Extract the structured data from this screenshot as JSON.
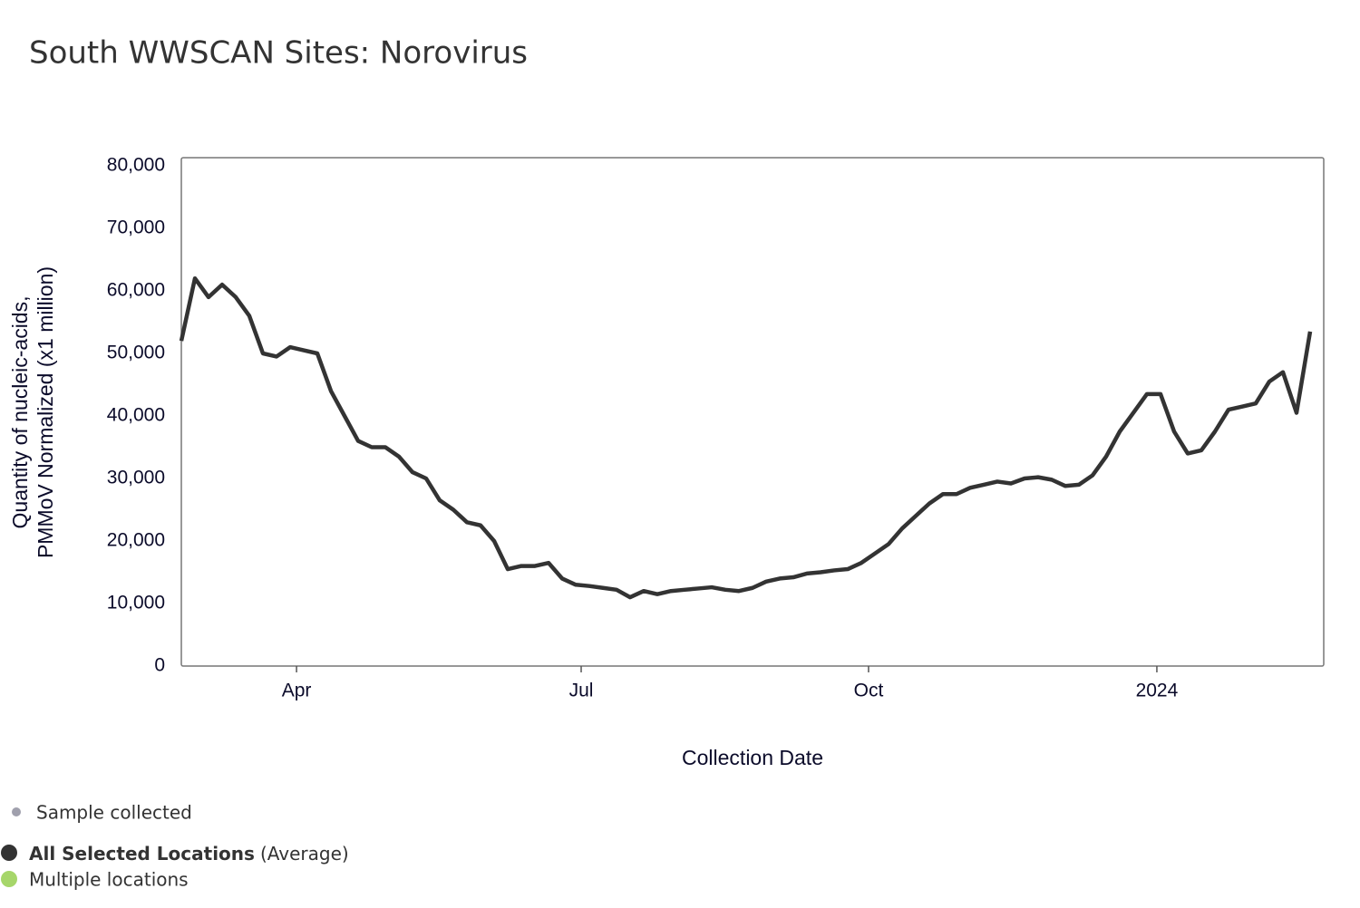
{
  "chart_data": {
    "type": "line",
    "title": "South WWSCAN Sites: Norovirus",
    "xlabel": "Collection Date",
    "ylabel": [
      "Quantity of nucleic-acids,",
      "PMMoV Normalized (x1 million)"
    ],
    "xlim": [
      0,
      84
    ],
    "xticks": [
      {
        "value": 8.47,
        "label": "Apr"
      },
      {
        "value": 29.4,
        "label": "Jul"
      },
      {
        "value": 50.53,
        "label": "Oct"
      },
      {
        "value": 71.73,
        "label": "2024"
      }
    ],
    "ylim": [
      0,
      80000
    ],
    "yticks": [
      0,
      {
        "value": 10000,
        "label": "10,000"
      },
      {
        "value": 20000,
        "label": "20,000"
      },
      {
        "value": 30000,
        "label": "30,000"
      },
      {
        "value": 40000,
        "label": "40,000"
      },
      {
        "value": 50000,
        "label": "50,000"
      },
      {
        "value": 60000,
        "label": "60,000"
      },
      {
        "value": 70000,
        "label": "70,000"
      },
      {
        "value": 80000,
        "label": "80,000"
      }
    ],
    "series": [
      {
        "name": "All Selected Locations",
        "name_suffix": "(Average)",
        "color": "#333333",
        "values": [
          52000,
          62000,
          59000,
          61000,
          59000,
          56000,
          50000,
          49500,
          51000,
          50500,
          50000,
          44000,
          40000,
          36000,
          35000,
          35000,
          33500,
          31000,
          30000,
          26500,
          25000,
          23000,
          22500,
          20000,
          15500,
          16000,
          16000,
          16500,
          14000,
          13000,
          12800,
          12500,
          12200,
          11000,
          12000,
          11500,
          12000,
          12200,
          12400,
          12600,
          12200,
          12000,
          12500,
          13500,
          14000,
          14200,
          14800,
          15000,
          15300,
          15500,
          16500,
          18000,
          19500,
          22000,
          24000,
          26000,
          27500,
          27500,
          28500,
          29000,
          29500,
          29200,
          30000,
          30200,
          29800,
          28800,
          29000,
          30500,
          33500,
          37500,
          40500,
          43500,
          43500,
          37500,
          34000,
          34500,
          37500,
          41000,
          41500,
          42000,
          45500,
          47000,
          40500,
          53500
        ]
      }
    ],
    "legend": [
      {
        "name": "Sample collected",
        "color": "#a0a0ad"
      },
      {
        "name": "Multiple locations",
        "color": "#a6d66a"
      }
    ]
  }
}
